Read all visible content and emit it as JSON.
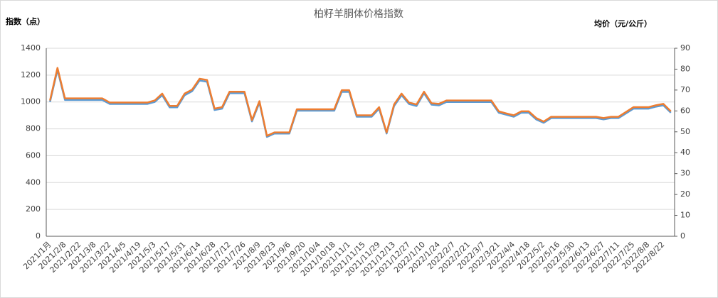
{
  "chart_data": {
    "type": "line",
    "title": "柏籽羊胴体价格指数",
    "y_label": "指数（点）",
    "y2_label": "均价（元/公斤）",
    "categories": [
      "2021/1月",
      null,
      "2021/2/8",
      null,
      "2021/2/22",
      null,
      "2021/3/8",
      null,
      "2021/3/22",
      null,
      "2021/4/5",
      null,
      "2021/4/19",
      null,
      "2021/5/3",
      null,
      "2021/5/17",
      null,
      "2021/5/31",
      null,
      "2021/6/14",
      null,
      "2021/6/28",
      null,
      "2021/7/12",
      null,
      "2021/7/26",
      null,
      "2021/8/9",
      null,
      "2021/8/23",
      null,
      "2021/9/6",
      null,
      "2021/9/20",
      null,
      "2021/10/4",
      null,
      "2021/10/18",
      null,
      "2021/11/1",
      null,
      "2021/11/15",
      null,
      "2021/11/29",
      null,
      "2021/12/13",
      null,
      "2021/12/27",
      null,
      "2022/1/10",
      null,
      "2022/1/24",
      null,
      "2022/2/7",
      null,
      "2022/2/21",
      null,
      "2022/3/7",
      null,
      "2022/3/21",
      null,
      "2022/4/4",
      null,
      "2022/4/18",
      null,
      "2022/5/2",
      null,
      "2022/5/16",
      null,
      "2022/5/30",
      null,
      "2022/6/13",
      null,
      "2022/6/27",
      null,
      "2022/7/11",
      null,
      "2022/7/25",
      null,
      "2022/8/8",
      null,
      "2022/8/22",
      null
    ],
    "series": [
      {
        "color": "#5b9bd5",
        "values": [
          1000,
          1240,
          1015,
          1015,
          1015,
          1015,
          1015,
          1015,
          985,
          985,
          985,
          985,
          985,
          985,
          1000,
          1050,
          960,
          960,
          1050,
          1080,
          1160,
          1150,
          940,
          950,
          1065,
          1065,
          1065,
          855,
          995,
          740,
          765,
          765,
          765,
          935,
          935,
          935,
          935,
          935,
          935,
          1075,
          1075,
          890,
          890,
          890,
          950,
          765,
          970,
          1050,
          985,
          970,
          1065,
          980,
          975,
          1000,
          1000,
          1000,
          1000,
          1000,
          1000,
          1000,
          920,
          905,
          890,
          920,
          920,
          870,
          845,
          880,
          880,
          880,
          880,
          880,
          880,
          880,
          870,
          880,
          880,
          915,
          950,
          950,
          950,
          965,
          975,
          920
        ]
      },
      {
        "color": "#ed7d31",
        "axis": "y2",
        "values": [
          65.0,
          80.6,
          66.0,
          66.0,
          66.0,
          66.0,
          66.0,
          66.0,
          64.0,
          64.0,
          64.0,
          64.0,
          64.0,
          64.0,
          65.0,
          68.3,
          62.4,
          62.4,
          68.3,
          70.2,
          75.4,
          74.8,
          61.1,
          61.8,
          69.2,
          69.2,
          69.2,
          55.6,
          64.7,
          48.1,
          49.7,
          49.7,
          49.7,
          60.8,
          60.8,
          60.8,
          60.8,
          60.8,
          60.8,
          69.9,
          69.9,
          57.9,
          57.9,
          57.9,
          61.8,
          49.7,
          63.1,
          68.3,
          64.0,
          63.1,
          69.2,
          63.7,
          63.4,
          65.0,
          65.0,
          65.0,
          65.0,
          65.0,
          65.0,
          65.0,
          59.8,
          58.8,
          57.9,
          59.8,
          59.8,
          56.6,
          54.9,
          57.2,
          57.2,
          57.2,
          57.2,
          57.2,
          57.2,
          57.2,
          56.6,
          57.2,
          57.2,
          59.5,
          61.8,
          61.8,
          61.8,
          62.7,
          63.4,
          59.8
        ]
      }
    ],
    "ylim": [
      0,
      1400
    ],
    "yticks": [
      0,
      200,
      400,
      600,
      800,
      1000,
      1200,
      1400
    ],
    "y2lim": [
      0,
      90
    ],
    "y2ticks": [
      0,
      10,
      20,
      30,
      40,
      50,
      60,
      70,
      80,
      90
    ],
    "grid": true
  }
}
